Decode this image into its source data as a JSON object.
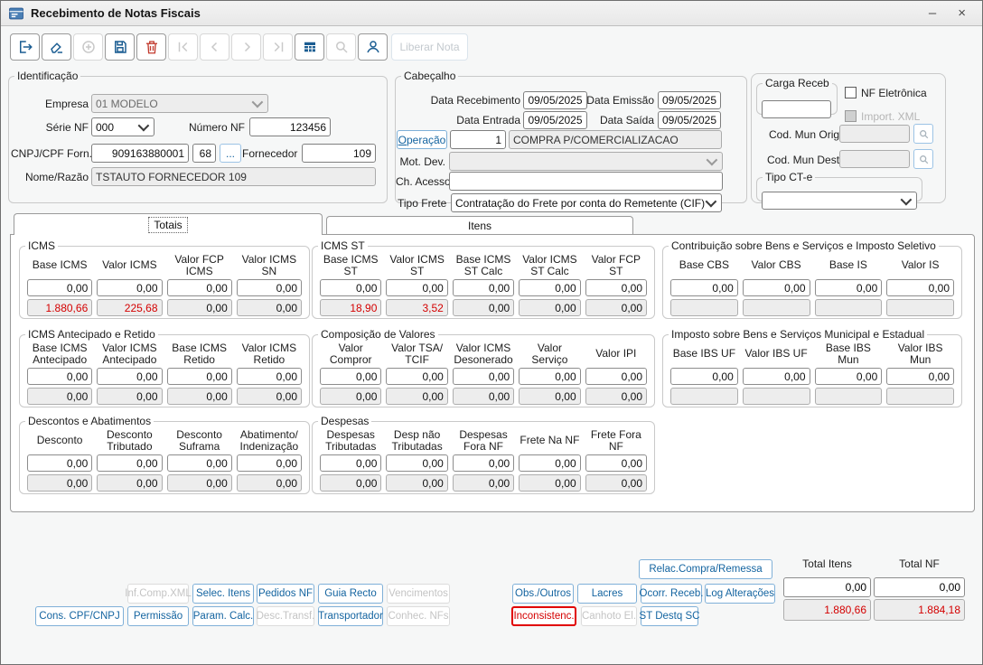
{
  "window": {
    "title": "Recebimento de Notas Fiscais",
    "minimize": "–",
    "close": "×"
  },
  "toolbar": {
    "icons": [
      "exit",
      "eraser",
      "add",
      "save",
      "delete",
      "first",
      "previous",
      "next",
      "last",
      "grid",
      "search",
      "user"
    ],
    "liberar_nota": "Liberar Nota"
  },
  "identificacao": {
    "legend": "Identificação",
    "empresa_label": "Empresa",
    "empresa_value": "01 MODELO",
    "serie_label": "Série NF",
    "serie_value": "000",
    "numero_label": "Número NF",
    "numero_value": "123456",
    "cnpj_label": "CNPJ/CPF Forn.",
    "cnpj_value": "909163880001",
    "cnpj_digit": "68",
    "browse_label": "...",
    "fornecedor_label": "Fornecedor",
    "fornecedor_value": "109",
    "nome_label": "Nome/Razão",
    "nome_value": "TSTAUTO FORNECEDOR 109"
  },
  "cabecalho": {
    "legend": "Cabeçalho",
    "data_recebimento_label": "Data Recebimento",
    "data_recebimento": "09/05/2025",
    "data_emissao_label": "Data Emissão",
    "data_emissao": "09/05/2025",
    "data_entrada_label": "Data Entrada",
    "data_entrada": "09/05/2025",
    "data_saida_label": "Data Saída",
    "data_saida": "09/05/2025",
    "operacao_button": {
      "initial": "O",
      "rest": "peração"
    },
    "operacao_code": "1",
    "operacao_desc": "COMPRA P/COMERCIALIZACAO",
    "mot_dev_label": "Mot. Dev.",
    "ch_acesso_label": "Ch. Acesso",
    "ch_acesso_value": "",
    "tipo_frete_label": "Tipo Frete",
    "tipo_frete_value": "Contratação do Frete por conta do Remetente (CIF)"
  },
  "carga": {
    "legend": "Carga Receb",
    "value": "",
    "nf_eletronica_label": "NF Eletrônica",
    "import_xml_label": "Import. XML",
    "cod_mun_orig_label": "Cod. Mun Orig.",
    "cod_mun_dest_label": "Cod. Mun Dest.",
    "tipo_cte_legend": "Tipo CT-e"
  },
  "tabs": {
    "totais": "Totais",
    "itens": "Itens"
  },
  "groups": {
    "icms": {
      "legend": "ICMS",
      "cols": [
        "Base ICMS",
        "Valor ICMS",
        "Valor FCP ICMS",
        "Valor ICMS SN"
      ],
      "rows": [
        [
          "0,00",
          "0,00",
          "0,00",
          "0,00"
        ],
        [
          "1.880,66",
          "225,68",
          "0,00",
          "0,00"
        ]
      ]
    },
    "icms_st": {
      "legend": "ICMS ST",
      "cols": [
        "Base ICMS ST",
        "Valor ICMS ST",
        "Base ICMS ST Calc",
        "Valor ICMS ST Calc",
        "Valor FCP ST"
      ],
      "rows": [
        [
          "0,00",
          "0,00",
          "0,00",
          "0,00",
          "0,00"
        ],
        [
          "18,90",
          "3,52",
          "0,00",
          "0,00",
          "0,00"
        ]
      ]
    },
    "cbs": {
      "legend": "Contribuição sobre Bens e Serviços e Imposto Seletivo",
      "cols": [
        "Base CBS",
        "Valor CBS",
        "Base IS",
        "Valor IS"
      ],
      "rows": [
        [
          "0,00",
          "0,00",
          "0,00",
          "0,00"
        ],
        [
          "",
          "",
          "",
          ""
        ]
      ]
    },
    "icms_antecipado": {
      "legend": "ICMS Antecipado e Retido",
      "cols": [
        "Base ICMS Antecipado",
        "Valor ICMS Antecipado",
        "Base ICMS Retido",
        "Valor ICMS Retido"
      ],
      "rows": [
        [
          "0,00",
          "0,00",
          "0,00",
          "0,00"
        ],
        [
          "0,00",
          "0,00",
          "0,00",
          "0,00"
        ]
      ]
    },
    "composicao": {
      "legend": "Composição de Valores",
      "cols": [
        "Valor Compror",
        "Valor TSA/ TCIF",
        "Valor ICMS Desonerado",
        "Valor Serviço",
        "Valor IPI"
      ],
      "rows": [
        [
          "0,00",
          "0,00",
          "0,00",
          "0,00",
          "0,00"
        ],
        [
          "0,00",
          "0,00",
          "0,00",
          "0,00",
          "0,00"
        ]
      ]
    },
    "ibs": {
      "legend": "Imposto sobre Bens e Serviços Municipal e Estadual",
      "cols": [
        "Base IBS UF",
        "Valor IBS UF",
        "Base IBS Mun",
        "Valor IBS Mun"
      ],
      "rows": [
        [
          "0,00",
          "0,00",
          "0,00",
          "0,00"
        ],
        [
          "",
          "",
          "",
          ""
        ]
      ]
    },
    "descontos": {
      "legend": "Descontos e Abatimentos",
      "cols": [
        "Desconto",
        "Desconto Tributado",
        "Desconto Suframa",
        "Abatimento/ Indenização"
      ],
      "rows": [
        [
          "0,00",
          "0,00",
          "0,00",
          "0,00"
        ],
        [
          "0,00",
          "0,00",
          "0,00",
          "0,00"
        ]
      ]
    },
    "despesas": {
      "legend": "Despesas",
      "cols": [
        "Despesas Tributadas",
        "Desp não Tributadas",
        "Despesas Fora NF",
        "Frete Na NF",
        "Frete Fora NF"
      ],
      "rows": [
        [
          "0,00",
          "0,00",
          "0,00",
          "0,00",
          "0,00"
        ],
        [
          "0,00",
          "0,00",
          "0,00",
          "0,00",
          "0,00"
        ]
      ]
    }
  },
  "actions": {
    "inf_comp_xml": {
      "label": "Inf.Comp.XML",
      "enabled": false
    },
    "selec_itens": {
      "label": "Selec. Itens",
      "enabled": true
    },
    "pedidos_nf": {
      "label": "Pedidos NF",
      "enabled": true
    },
    "guia_recto": {
      "label": "Guia Recto",
      "enabled": true
    },
    "vencimentos": {
      "label": "Vencimentos",
      "enabled": false
    },
    "cons_cpf_cnpj": {
      "label": "Cons. CPF/CNPJ",
      "enabled": true
    },
    "permissao": {
      "label": "Permissão",
      "enabled": true
    },
    "param_calc": {
      "label": "Param. Calc.",
      "enabled": true
    },
    "desc_transf": {
      "label": "Desc.Transf.",
      "enabled": false
    },
    "transportador": {
      "label": "Transportador",
      "enabled": true
    },
    "conhec_nfs": {
      "label": "Conhec. NFs",
      "enabled": false
    },
    "relac_compra_remessa": {
      "label": "Relac.Compra/Remessa",
      "enabled": true
    },
    "obs_outros": {
      "label": "Obs./Outros",
      "enabled": true
    },
    "lacres": {
      "label": "Lacres",
      "enabled": true
    },
    "ocorr_receb": {
      "label": "Ocorr. Receb.",
      "enabled": true
    },
    "log_alteracoes": {
      "label": "Log Alterações",
      "enabled": true
    },
    "inconsistenc": {
      "label": "Inconsistenc.",
      "enabled": true,
      "highlighted": true
    },
    "canhoto_el": {
      "label": "Canhoto El.",
      "enabled": false
    },
    "st_destq_sc": {
      "label": "ST Destq SC",
      "enabled": true
    }
  },
  "totals": {
    "itens_label": "Total Itens",
    "nf_label": "Total NF",
    "itens": [
      "0,00",
      "1.880,66"
    ],
    "nf": [
      "0,00",
      "1.884,18"
    ]
  },
  "colors": {
    "accent_blue": "#1464a0",
    "danger_red": "#d40000",
    "disabled_grey": "#c4c4c4"
  }
}
